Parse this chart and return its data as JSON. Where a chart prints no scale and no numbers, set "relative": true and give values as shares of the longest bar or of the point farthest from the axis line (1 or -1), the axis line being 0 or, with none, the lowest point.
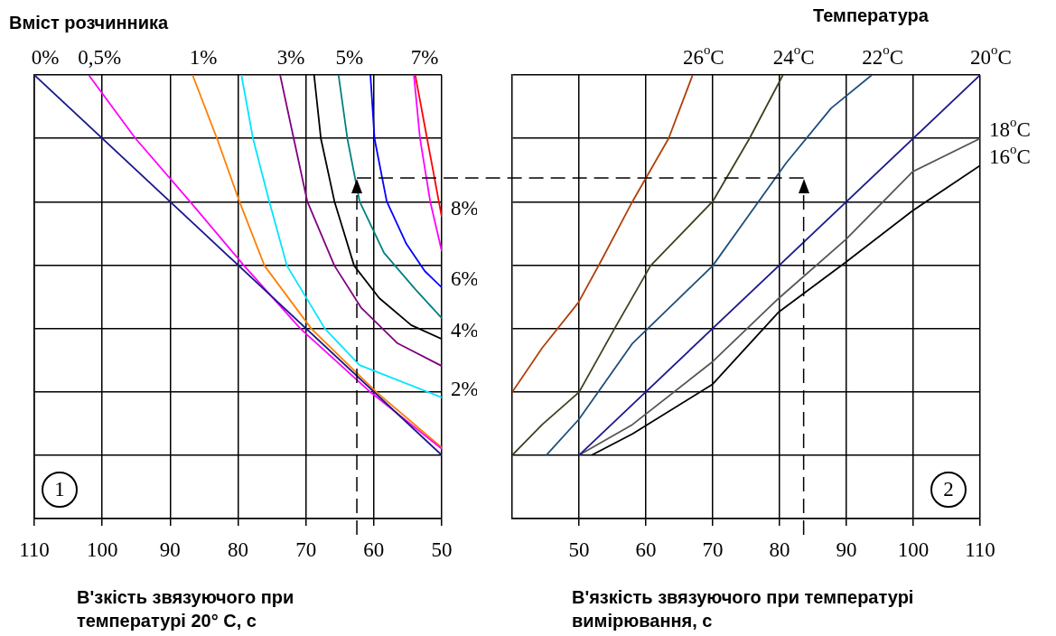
{
  "chart_data": [
    {
      "type": "line",
      "title": "Вміст розчинника",
      "xlabel": "В'зкість звязуючого при температурі 20° С, с",
      "relative": true,
      "grid": true,
      "xlim": [
        110,
        50
      ],
      "xticks": [
        110,
        100,
        90,
        80,
        70,
        60,
        50
      ],
      "series": [
        {
          "name": "0%",
          "color": "#1a1a8c",
          "x": [
            110,
            50
          ],
          "values": [
            1,
            0.143
          ]
        },
        {
          "name": "0,5%",
          "color": "#ff00ff",
          "x": [
            102,
            95.1,
            87.1,
            79.1,
            70.8,
            60.5,
            50
          ],
          "values": [
            1,
            0.857,
            0.715,
            0.57,
            0.428,
            0.285,
            0.157
          ]
        },
        {
          "name": "1%",
          "color": "#ff7f00",
          "x": [
            86.7,
            83.1,
            79.8,
            76.1,
            69.2,
            59.6,
            50
          ],
          "values": [
            1,
            0.857,
            0.715,
            0.57,
            0.428,
            0.285,
            0.16
          ]
        },
        {
          "name": "2%",
          "color": "#00e5ff",
          "x": [
            79.5,
            77.8,
            75.4,
            72.8,
            67.2,
            62.1,
            50
          ],
          "values": [
            1,
            0.857,
            0.715,
            0.57,
            0.428,
            0.346,
            0.273
          ]
        },
        {
          "name": "3%",
          "color": "#800080",
          "x": [
            73.8,
            71.8,
            69.8,
            65.8,
            61.9,
            56.5,
            50
          ],
          "values": [
            1,
            0.857,
            0.715,
            0.57,
            0.476,
            0.395,
            0.344
          ]
        },
        {
          "name": "4%",
          "color": "#000000",
          "x": [
            68.8,
            67.8,
            65.8,
            62.9,
            59.2,
            54.5,
            50
          ],
          "values": [
            1,
            0.857,
            0.715,
            0.57,
            0.497,
            0.436,
            0.405
          ]
        },
        {
          "name": "5%",
          "color": "#008080",
          "x": [
            65.2,
            63.9,
            62.1,
            58.5,
            53.9,
            50
          ],
          "values": [
            1,
            0.857,
            0.715,
            0.599,
            0.517,
            0.452
          ]
        },
        {
          "name": "6%",
          "color": "#0000ff",
          "x": [
            60.5,
            59.9,
            58.1,
            55.2,
            52.5,
            50
          ],
          "values": [
            1,
            0.857,
            0.715,
            0.619,
            0.558,
            0.521
          ]
        },
        {
          "name": "7%",
          "color": "#ff00ff",
          "x": [
            54.1,
            53.2,
            51.7,
            50
          ],
          "values": [
            1,
            0.857,
            0.715,
            0.603
          ]
        },
        {
          "name": "8%",
          "color": "#ff0000",
          "x": [
            53.9,
            50
          ],
          "values": [
            1,
            0.68
          ]
        }
      ],
      "annotations": [
        "1"
      ],
      "ref_lines": [
        {
          "axis": "x",
          "value": 62.5,
          "line_style": "dashed"
        },
        {
          "axis": "y",
          "value": 0.768,
          "line_style": "dashed"
        }
      ]
    },
    {
      "type": "line",
      "title": "Температура",
      "xlabel": "В'язкість звязуючого при температурі вимірювання, с",
      "relative": true,
      "grid": true,
      "xlim": [
        40,
        110
      ],
      "xticks": [
        50,
        60,
        70,
        80,
        90,
        100,
        110
      ],
      "series": [
        {
          "name": "26$^{o}$C",
          "color": "#b0400a",
          "x": [
            40,
            44.5,
            49.9,
            53.2,
            58,
            63.4,
            67
          ],
          "values": [
            0.285,
            0.385,
            0.487,
            0.578,
            0.715,
            0.857,
            1
          ]
        },
        {
          "name": "24$^{o}$C",
          "color": "#404020",
          "x": [
            40,
            44.5,
            50,
            55.3,
            60.7,
            70,
            75.5,
            80.5
          ],
          "values": [
            0.143,
            0.212,
            0.285,
            0.428,
            0.57,
            0.715,
            0.857,
            1
          ]
        },
        {
          "name": "22$^{o}$C",
          "color": "#1f4e79",
          "x": [
            45.1,
            50,
            58,
            70,
            81,
            87.7,
            93.8
          ],
          "values": [
            0.143,
            0.224,
            0.395,
            0.57,
            0.802,
            0.925,
            1
          ]
        },
        {
          "name": "20$^{o}$C",
          "color": "#1a1a8c",
          "x": [
            50,
            110
          ],
          "values": [
            0.143,
            1
          ]
        },
        {
          "name": "18$^{o}$C",
          "color": "#555555",
          "x": [
            50,
            58,
            70,
            79.9,
            89.9,
            99.9,
            110
          ],
          "values": [
            0.143,
            0.212,
            0.354,
            0.497,
            0.629,
            0.782,
            0.857
          ]
        },
        {
          "name": "16$^{o}$C",
          "color": "#000000",
          "x": [
            51.9,
            58,
            70,
            79.9,
            89.9,
            99.9,
            110
          ],
          "values": [
            0.143,
            0.191,
            0.303,
            0.466,
            0.578,
            0.694,
            0.796
          ]
        }
      ],
      "annotations": [
        "2"
      ],
      "ref_lines": [
        {
          "axis": "x",
          "value": 83.6,
          "line_style": "dashed"
        },
        {
          "axis": "y",
          "value": 0.768,
          "line_style": "dashed"
        }
      ]
    }
  ]
}
